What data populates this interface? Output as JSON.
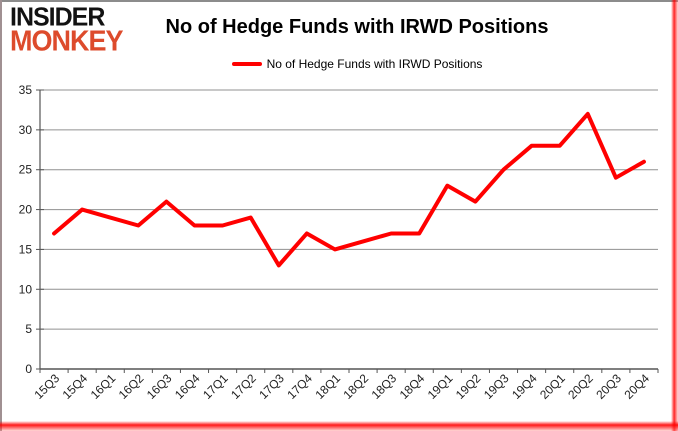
{
  "logo": {
    "top": "INSIDER",
    "bottom": "MONKEY",
    "top_color": "#121212",
    "bottom_color": "#dd4b2c"
  },
  "header": {
    "title": "No of Hedge Funds with IRWD Positions"
  },
  "legend": {
    "label": "No of Hedge Funds with IRWD Positions",
    "swatch_color": "#ff0000"
  },
  "chart_data": {
    "type": "line",
    "title": "No of Hedge Funds with IRWD Positions",
    "categories": [
      "15Q3",
      "15Q4",
      "16Q1",
      "16Q2",
      "16Q3",
      "16Q4",
      "17Q1",
      "17Q2",
      "17Q3",
      "17Q4",
      "18Q1",
      "18Q2",
      "18Q3",
      "18Q4",
      "19Q1",
      "19Q2",
      "19Q3",
      "19Q4",
      "20Q1",
      "20Q2",
      "20Q3",
      "20Q4"
    ],
    "series": [
      {
        "name": "No of Hedge Funds with IRWD Positions",
        "color": "#ff0000",
        "values": [
          17,
          20,
          19,
          18,
          21,
          18,
          18,
          19,
          13,
          17,
          15,
          16,
          17,
          17,
          23,
          21,
          25,
          28,
          28,
          32,
          24,
          26
        ]
      }
    ],
    "xlabel": "",
    "ylabel": "",
    "ylim": [
      0,
      35
    ],
    "ytick_step": 5,
    "grid": true,
    "legend_position": "top-center",
    "x_tick_rotation_deg": -45
  },
  "colors": {
    "gridline": "#909090",
    "axis": "#555555",
    "tick_label": "#1f1f1f",
    "line": "#ff0000"
  }
}
